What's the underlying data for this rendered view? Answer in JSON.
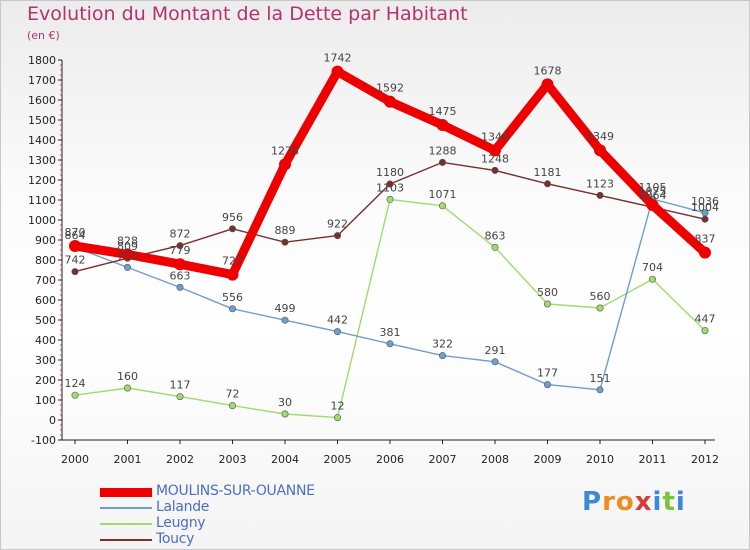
{
  "title": "Evolution du Montant de la Dette par Habitant",
  "subtitle": "(en €)",
  "logo": {
    "text": "Proxiti",
    "colors": [
      "#3a8ad8",
      "#f08c1e",
      "#f08c1e",
      "#d83a3a",
      "#3a8ad8",
      "#7dc23a",
      "#3a8ad8"
    ]
  },
  "chart_data": {
    "type": "line",
    "x": [
      "2000",
      "2001",
      "2002",
      "2003",
      "2004",
      "2005",
      "2006",
      "2007",
      "2008",
      "2009",
      "2010",
      "2011",
      "2012"
    ],
    "ylim": [
      -100,
      1800
    ],
    "yticks": [
      -100,
      0,
      100,
      200,
      300,
      400,
      500,
      600,
      700,
      800,
      900,
      1000,
      1100,
      1200,
      1300,
      1400,
      1500,
      1600,
      1700,
      1800
    ],
    "grid": false,
    "legend_position": "bottom-left",
    "series": [
      {
        "name": "MOULINS-SUR-OUANNE",
        "color": "#ee0000",
        "values": [
          870,
          828,
          779,
          727,
          1278,
          1742,
          1592,
          1475,
          1348,
          1678,
          1349,
          1075,
          837
        ]
      },
      {
        "name": "Lalande",
        "color": "#6e9ecf",
        "values": [
          864,
          763,
          663,
          556,
          499,
          442,
          381,
          322,
          291,
          177,
          151,
          1105,
          1036
        ]
      },
      {
        "name": "Leugny",
        "color": "#9edc6e",
        "values": [
          124,
          160,
          117,
          72,
          30,
          12,
          1103,
          1071,
          863,
          580,
          560,
          704,
          447
        ]
      },
      {
        "name": "Toucy",
        "color": "#7a2e2e",
        "values": [
          742,
          809,
          872,
          956,
          889,
          922,
          1180,
          1288,
          1248,
          1181,
          1123,
          1064,
          1004
        ]
      }
    ]
  }
}
